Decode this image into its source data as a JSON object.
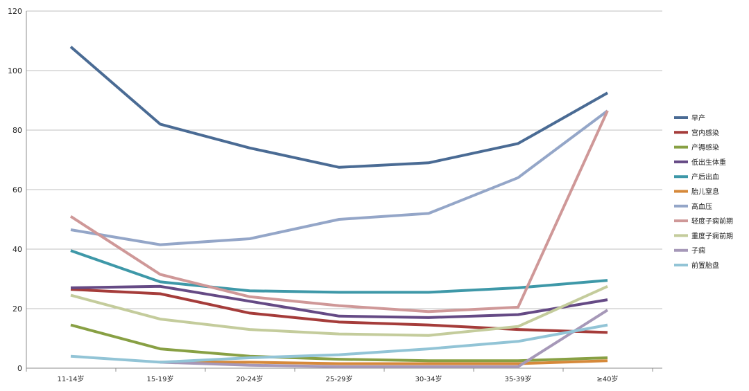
{
  "chart_data": {
    "type": "line",
    "title": "",
    "xlabel": "",
    "ylabel": "",
    "categories": [
      "11-14岁",
      "15-19岁",
      "20-24岁",
      "25-29岁",
      "30-34岁",
      "35-39岁",
      "≥40岁"
    ],
    "ylim": [
      0,
      120
    ],
    "yticks": [
      0,
      20,
      40,
      60,
      80,
      100,
      120
    ],
    "grid": true,
    "legend_position": "right",
    "series": [
      {
        "name": "早产",
        "color": "#4a6b94",
        "values": [
          108,
          82,
          74,
          67.5,
          69,
          75.5,
          92.5
        ]
      },
      {
        "name": "宫内感染",
        "color": "#a53c3a",
        "values": [
          26.5,
          25,
          18.5,
          15.5,
          14.5,
          13,
          12
        ]
      },
      {
        "name": "产褥感染",
        "color": "#88a044",
        "values": [
          14.5,
          6.5,
          4,
          3,
          2.5,
          2.5,
          3.5
        ]
      },
      {
        "name": "低出生体重",
        "color": "#654a85",
        "values": [
          27,
          27.5,
          22.5,
          17.5,
          17,
          18,
          23
        ]
      },
      {
        "name": "产后出血",
        "color": "#3e98a8",
        "values": [
          39.5,
          29,
          26,
          25.5,
          25.5,
          27,
          29.5
        ]
      },
      {
        "name": "胎儿窒息",
        "color": "#d6893a",
        "values": [
          null,
          2,
          2,
          1.5,
          1.5,
          1.5,
          2.5
        ]
      },
      {
        "name": "高血压",
        "color": "#94a6c8",
        "values": [
          46.5,
          41.5,
          43.5,
          50,
          52,
          64,
          86.5
        ]
      },
      {
        "name": "轻度子痫前期",
        "color": "#cf9898",
        "values": [
          51,
          31.5,
          24,
          21,
          19,
          20.5,
          86.5
        ]
      },
      {
        "name": "重度子痫前期",
        "color": "#c4cc9c",
        "values": [
          24.5,
          16.5,
          13,
          11.5,
          11,
          14,
          27.5
        ]
      },
      {
        "name": "子痫",
        "color": "#a698b8",
        "values": [
          null,
          2,
          1,
          0.5,
          0.5,
          0.5,
          19.5
        ]
      },
      {
        "name": "前置胎盘",
        "color": "#92c4d6",
        "values": [
          4,
          2,
          3.5,
          4.5,
          6.5,
          9,
          14.5
        ]
      }
    ]
  }
}
